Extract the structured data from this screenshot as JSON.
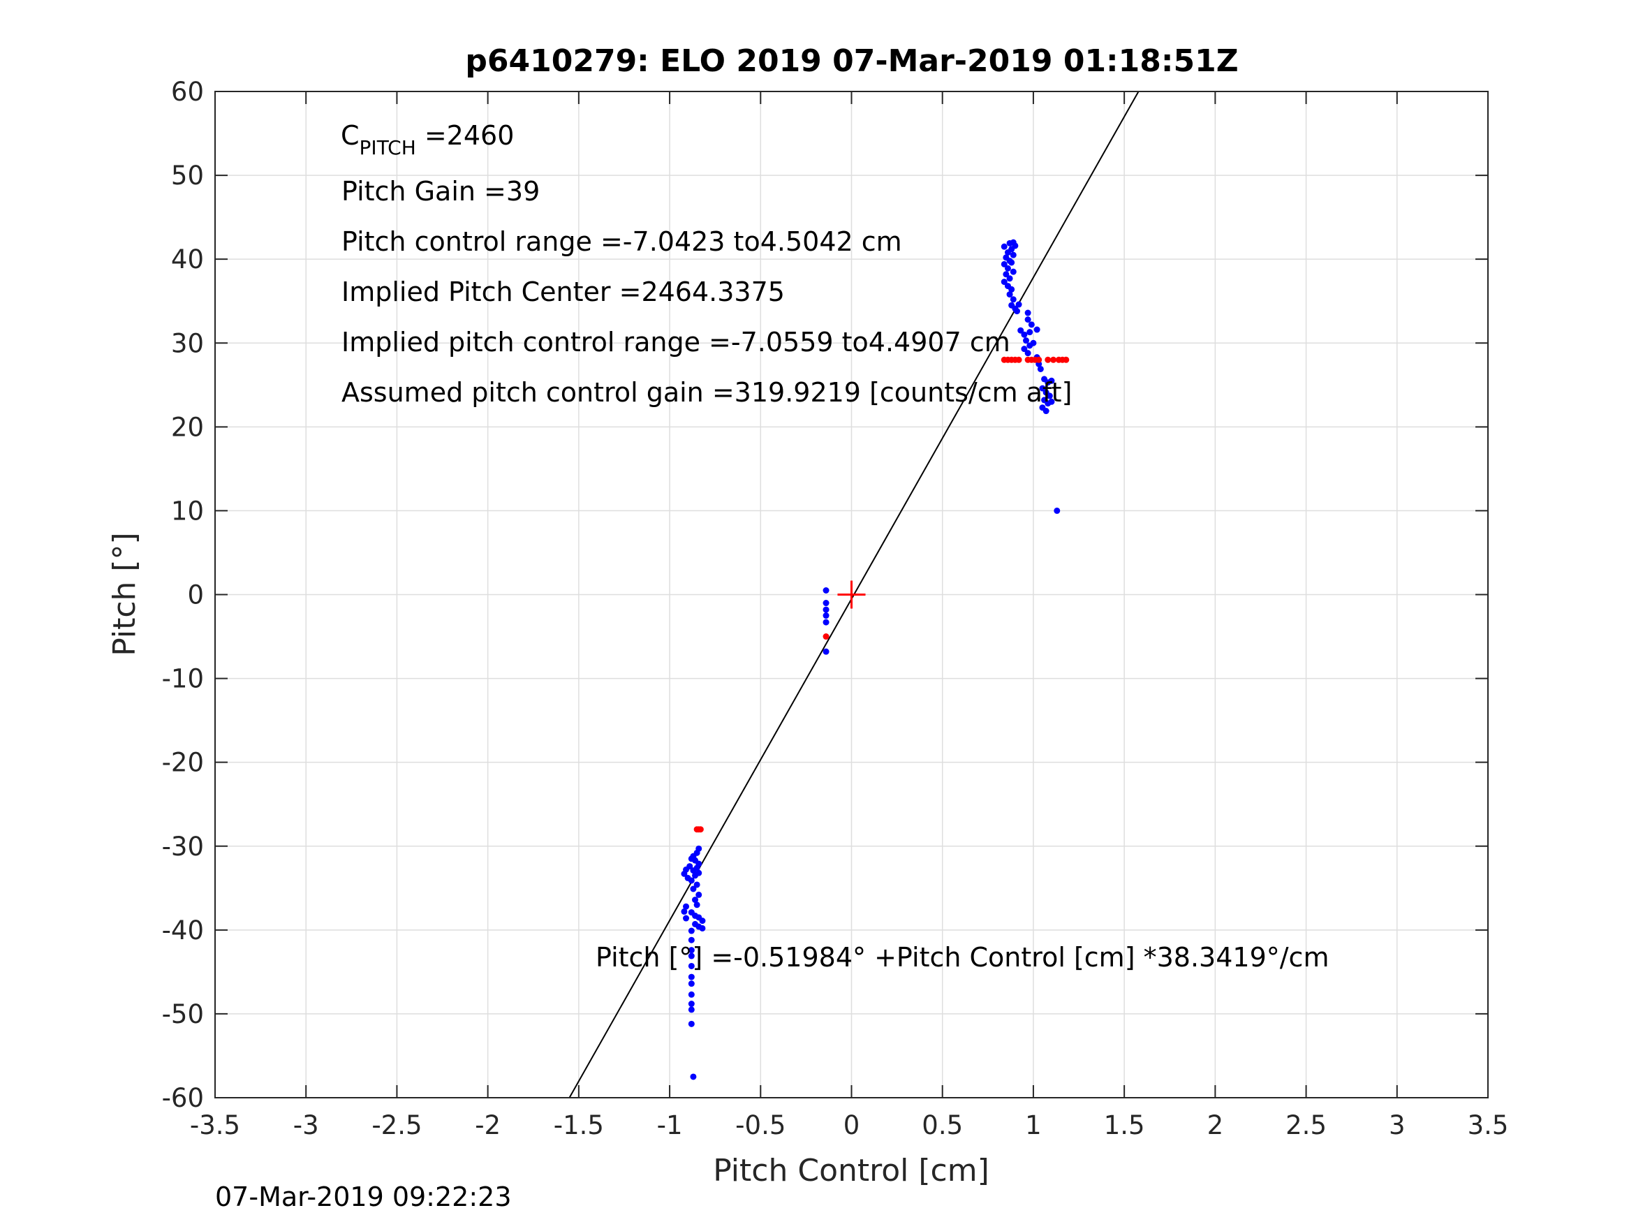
{
  "chart_data": {
    "type": "scatter",
    "title": "p6410279: ELO 2019 07-Mar-2019 01:18:51Z",
    "xlabel": "Pitch Control [cm]",
    "ylabel": "Pitch [°]",
    "xlim": [
      -3.5,
      3.5
    ],
    "ylim": [
      -60,
      60
    ],
    "xticks": [
      "-3.5",
      "-3",
      "-2.5",
      "-2",
      "-1.5",
      "-1",
      "-0.5",
      "0",
      "0.5",
      "1",
      "1.5",
      "2",
      "2.5",
      "3",
      "3.5"
    ],
    "yticks": [
      "60",
      "50",
      "40",
      "30",
      "20",
      "10",
      "0",
      "-10",
      "-20",
      "-30",
      "-40",
      "-50",
      "-60"
    ],
    "grid": true,
    "fit_line": {
      "intercept": -0.51984,
      "slope": 38.3419
    },
    "center_marker": {
      "x": 0,
      "y": 0,
      "color": "#ff0000"
    },
    "annotations": {
      "c_pitch_base": "C",
      "c_pitch_sub": "PITCH",
      "c_pitch_value": " =2460",
      "pitch_gain": "Pitch Gain =39",
      "control_range": "Pitch control range =-7.0423 to4.5042 cm",
      "implied_center": "Implied Pitch Center =2464.3375",
      "implied_range": "Implied pitch control range =-7.0559 to4.4907 cm",
      "assumed_gain": "Assumed pitch control gain =319.9219 [counts/cm aft]",
      "equation": "Pitch [°] =-0.51984° +Pitch Control [cm] *38.3419°/cm"
    },
    "timestamp": "07-Mar-2019 09:22:23",
    "series": [
      {
        "color": "#0000ff",
        "points": [
          [
            0.84,
            41.5
          ],
          [
            0.86,
            40.8
          ],
          [
            0.87,
            41.9
          ],
          [
            0.88,
            41.2
          ],
          [
            0.89,
            42.0
          ],
          [
            0.9,
            41.6
          ],
          [
            0.85,
            40.2
          ],
          [
            0.87,
            39.8
          ],
          [
            0.89,
            40.5
          ],
          [
            0.84,
            39.4
          ],
          [
            0.86,
            38.9
          ],
          [
            0.88,
            39.6
          ],
          [
            0.85,
            38.2
          ],
          [
            0.87,
            37.7
          ],
          [
            0.89,
            38.5
          ],
          [
            0.84,
            37.3
          ],
          [
            0.86,
            36.8
          ],
          [
            0.88,
            36.4
          ],
          [
            0.87,
            35.8
          ],
          [
            0.89,
            35.2
          ],
          [
            0.88,
            34.5
          ],
          [
            0.9,
            34.1
          ],
          [
            0.92,
            34.6
          ],
          [
            0.91,
            33.8
          ],
          [
            0.97,
            33.6
          ],
          [
            0.97,
            32.8
          ],
          [
            0.99,
            32.2
          ],
          [
            0.93,
            31.5
          ],
          [
            0.95,
            31.0
          ],
          [
            0.98,
            31.3
          ],
          [
            1.02,
            31.6
          ],
          [
            0.96,
            30.3
          ],
          [
            0.98,
            29.7
          ],
          [
            1.0,
            30.0
          ],
          [
            0.95,
            29.3
          ],
          [
            0.97,
            28.8
          ],
          [
            1.02,
            28.3
          ],
          [
            1.03,
            27.5
          ],
          [
            1.04,
            26.9
          ],
          [
            1.06,
            25.7
          ],
          [
            1.08,
            25.3
          ],
          [
            1.1,
            25.5
          ],
          [
            1.05,
            24.6
          ],
          [
            1.07,
            24.1
          ],
          [
            1.09,
            23.7
          ],
          [
            1.06,
            23.2
          ],
          [
            1.08,
            22.8
          ],
          [
            1.1,
            23.0
          ],
          [
            1.05,
            22.3
          ],
          [
            1.07,
            21.9
          ],
          [
            1.13,
            10.0
          ],
          [
            -0.14,
            0.5
          ],
          [
            -0.14,
            -1.0
          ],
          [
            -0.14,
            -1.8
          ],
          [
            -0.14,
            -2.5
          ],
          [
            -0.14,
            -3.3
          ],
          [
            -0.14,
            -6.8
          ],
          [
            -0.84,
            -30.3
          ],
          [
            -0.85,
            -30.8
          ],
          [
            -0.87,
            -31.2
          ],
          [
            -0.86,
            -31.7
          ],
          [
            -0.88,
            -31.5
          ],
          [
            -0.84,
            -32.1
          ],
          [
            -0.85,
            -32.6
          ],
          [
            -0.87,
            -32.9
          ],
          [
            -0.89,
            -32.4
          ],
          [
            -0.91,
            -32.8
          ],
          [
            -0.92,
            -33.3
          ],
          [
            -0.9,
            -33.8
          ],
          [
            -0.88,
            -34.1
          ],
          [
            -0.86,
            -33.5
          ],
          [
            -0.84,
            -33.2
          ],
          [
            -0.85,
            -34.6
          ],
          [
            -0.87,
            -35.1
          ],
          [
            -0.84,
            -35.8
          ],
          [
            -0.86,
            -36.4
          ],
          [
            -0.85,
            -37.0
          ],
          [
            -0.91,
            -37.2
          ],
          [
            -0.92,
            -37.8
          ],
          [
            -0.91,
            -38.6
          ],
          [
            -0.88,
            -37.9
          ],
          [
            -0.86,
            -38.3
          ],
          [
            -0.84,
            -38.5
          ],
          [
            -0.82,
            -38.9
          ],
          [
            -0.82,
            -39.8
          ],
          [
            -0.84,
            -39.6
          ],
          [
            -0.86,
            -39.3
          ],
          [
            -0.88,
            -40.1
          ],
          [
            -0.88,
            -41.2
          ],
          [
            -0.88,
            -42.4
          ],
          [
            -0.88,
            -43.1
          ],
          [
            -0.88,
            -44.3
          ],
          [
            -0.88,
            -45.6
          ],
          [
            -0.88,
            -46.4
          ],
          [
            -0.88,
            -47.7
          ],
          [
            -0.88,
            -48.8
          ],
          [
            -0.88,
            -49.5
          ],
          [
            -0.88,
            -51.2
          ],
          [
            -0.87,
            -57.5
          ]
        ]
      },
      {
        "color": "#ff0000",
        "points": [
          [
            0.84,
            28.0
          ],
          [
            0.86,
            28.0
          ],
          [
            0.88,
            28.0
          ],
          [
            0.9,
            28.0
          ],
          [
            0.92,
            28.0
          ],
          [
            0.97,
            28.0
          ],
          [
            0.99,
            28.0
          ],
          [
            1.01,
            28.0
          ],
          [
            1.03,
            28.0
          ],
          [
            1.08,
            28.0
          ],
          [
            1.11,
            28.0
          ],
          [
            1.14,
            28.0
          ],
          [
            1.16,
            28.0
          ],
          [
            1.18,
            28.0
          ],
          [
            -0.14,
            -5.0
          ],
          [
            -0.84,
            -28.0
          ],
          [
            -0.83,
            -28.0
          ],
          [
            -0.85,
            -28.0
          ]
        ]
      }
    ]
  }
}
